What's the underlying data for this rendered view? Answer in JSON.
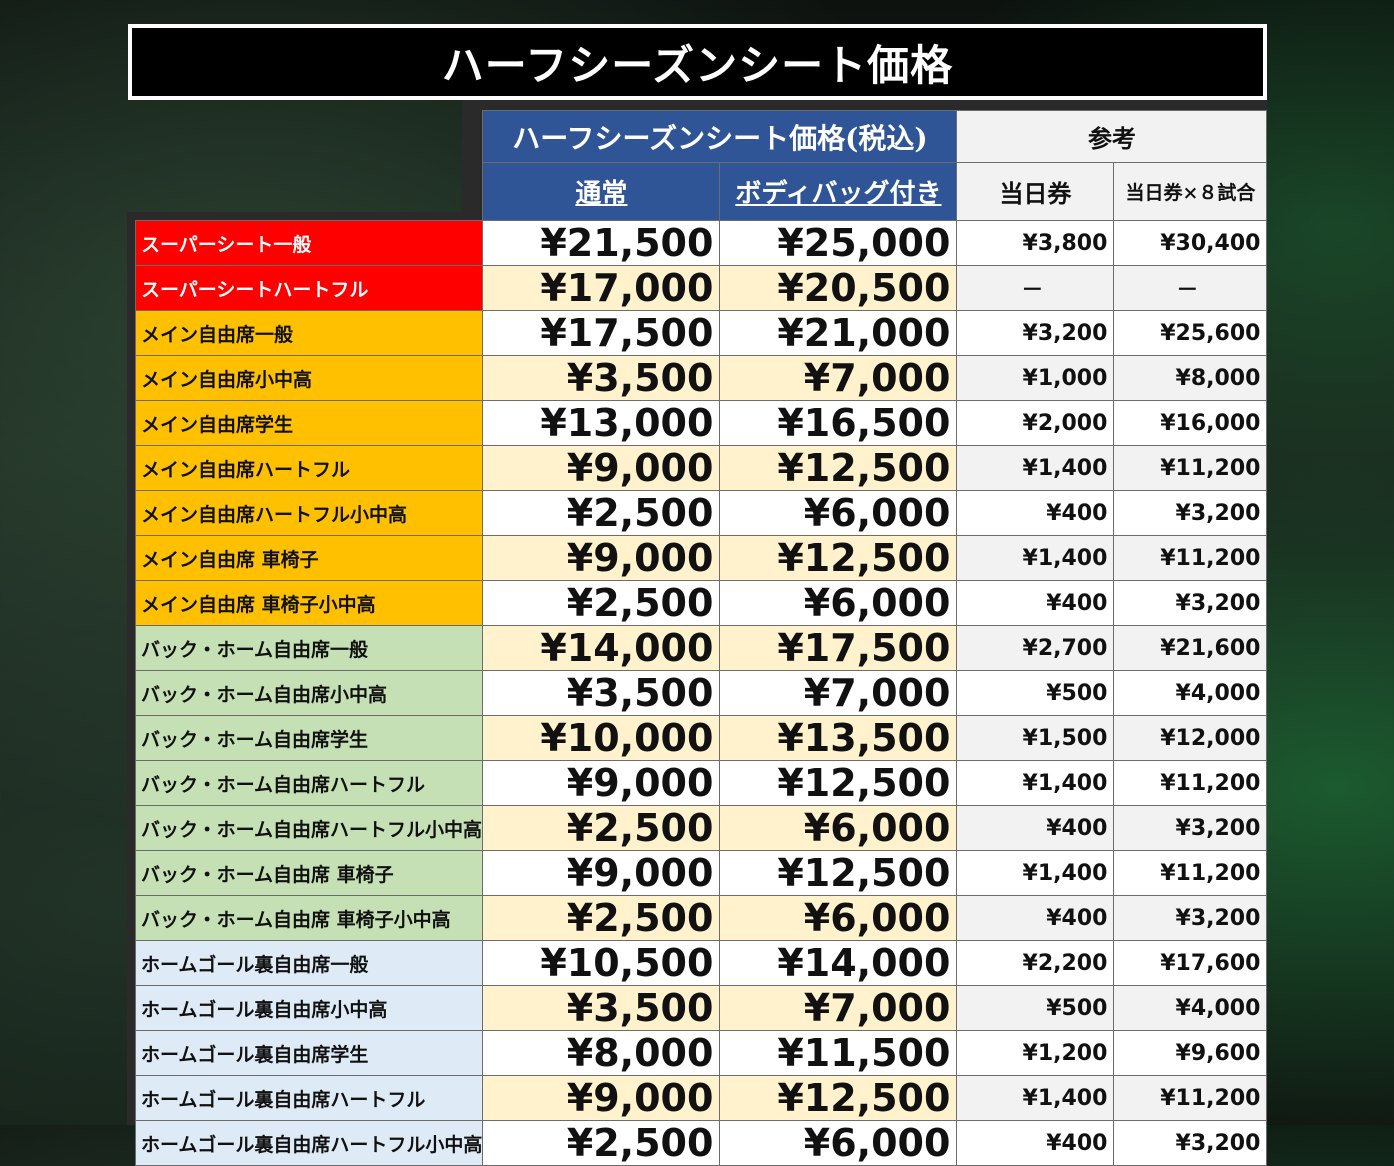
{
  "title": "ハーフシーズンシート価格",
  "header": {
    "price_group": "ハーフシーズンシート価格(税込)",
    "reference_group": "参考",
    "regular": "通常",
    "with_bag": "ボディバッグ付き",
    "day_ticket": "当日券",
    "day_ticket_x8": "当日券×８試合"
  },
  "colors": {
    "header_blue": "#2f5597",
    "super_seat": "#ff0000",
    "main_free": "#ffc000",
    "back_home_free": "#c5e0b4",
    "home_goal_free": "#deebf7",
    "alt_row": "#fff2cc"
  },
  "rows": [
    {
      "name": "スーパーシート一般",
      "regular": "¥21,500",
      "with_bag": "¥25,000",
      "day": "¥3,800",
      "day8": "¥30,400"
    },
    {
      "name": "スーパーシートハートフル",
      "regular": "¥17,000",
      "with_bag": "¥20,500",
      "day": "－",
      "day8": "－"
    },
    {
      "name": "メイン自由席一般",
      "regular": "¥17,500",
      "with_bag": "¥21,000",
      "day": "¥3,200",
      "day8": "¥25,600"
    },
    {
      "name": "メイン自由席小中高",
      "regular": "¥3,500",
      "with_bag": "¥7,000",
      "day": "¥1,000",
      "day8": "¥8,000"
    },
    {
      "name": "メイン自由席学生",
      "regular": "¥13,000",
      "with_bag": "¥16,500",
      "day": "¥2,000",
      "day8": "¥16,000"
    },
    {
      "name": "メイン自由席ハートフル",
      "regular": "¥9,000",
      "with_bag": "¥12,500",
      "day": "¥1,400",
      "day8": "¥11,200"
    },
    {
      "name": "メイン自由席ハートフル小中高",
      "regular": "¥2,500",
      "with_bag": "¥6,000",
      "day": "¥400",
      "day8": "¥3,200"
    },
    {
      "name": "メイン自由席 車椅子",
      "regular": "¥9,000",
      "with_bag": "¥12,500",
      "day": "¥1,400",
      "day8": "¥11,200"
    },
    {
      "name": "メイン自由席 車椅子小中高",
      "regular": "¥2,500",
      "with_bag": "¥6,000",
      "day": "¥400",
      "day8": "¥3,200"
    },
    {
      "name": "バック・ホーム自由席一般",
      "regular": "¥14,000",
      "with_bag": "¥17,500",
      "day": "¥2,700",
      "day8": "¥21,600"
    },
    {
      "name": "バック・ホーム自由席小中高",
      "regular": "¥3,500",
      "with_bag": "¥7,000",
      "day": "¥500",
      "day8": "¥4,000"
    },
    {
      "name": "バック・ホーム自由席学生",
      "regular": "¥10,000",
      "with_bag": "¥13,500",
      "day": "¥1,500",
      "day8": "¥12,000"
    },
    {
      "name": "バック・ホーム自由席ハートフル",
      "regular": "¥9,000",
      "with_bag": "¥12,500",
      "day": "¥1,400",
      "day8": "¥11,200"
    },
    {
      "name": "バック・ホーム自由席ハートフル小中高",
      "regular": "¥2,500",
      "with_bag": "¥6,000",
      "day": "¥400",
      "day8": "¥3,200"
    },
    {
      "name": "バック・ホーム自由席 車椅子",
      "regular": "¥9,000",
      "with_bag": "¥12,500",
      "day": "¥1,400",
      "day8": "¥11,200"
    },
    {
      "name": "バック・ホーム自由席 車椅子小中高",
      "regular": "¥2,500",
      "with_bag": "¥6,000",
      "day": "¥400",
      "day8": "¥3,200"
    },
    {
      "name": "ホームゴール裏自由席一般",
      "regular": "¥10,500",
      "with_bag": "¥14,000",
      "day": "¥2,200",
      "day8": "¥17,600"
    },
    {
      "name": "ホームゴール裏自由席小中高",
      "regular": "¥3,500",
      "with_bag": "¥7,000",
      "day": "¥500",
      "day8": "¥4,000"
    },
    {
      "name": "ホームゴール裏自由席学生",
      "regular": "¥8,000",
      "with_bag": "¥11,500",
      "day": "¥1,200",
      "day8": "¥9,600"
    },
    {
      "name": "ホームゴール裏自由席ハートフル",
      "regular": "¥9,000",
      "with_bag": "¥12,500",
      "day": "¥1,400",
      "day8": "¥11,200"
    },
    {
      "name": "ホームゴール裏自由席ハートフル小中高",
      "regular": "¥2,500",
      "with_bag": "¥6,000",
      "day": "¥400",
      "day8": "¥3,200"
    }
  ]
}
